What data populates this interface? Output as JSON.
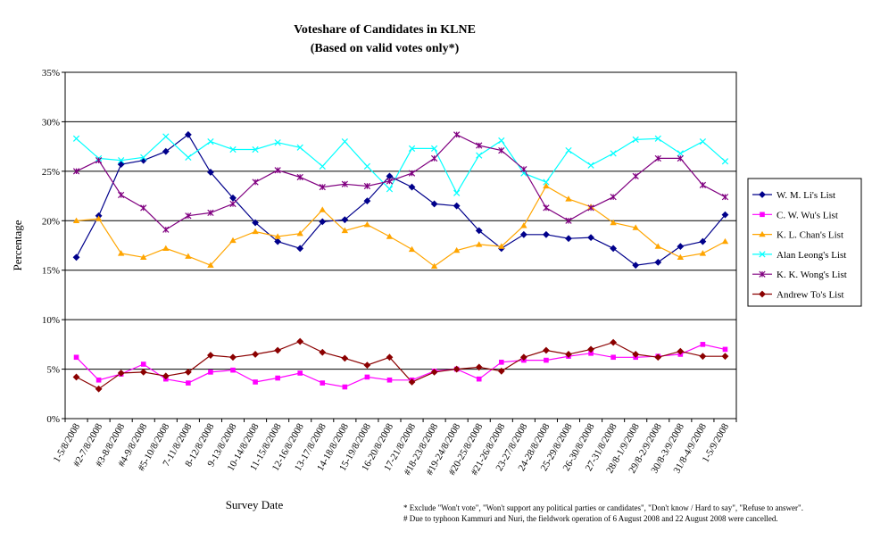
{
  "colors": {
    "background": "#ffffff",
    "grid": "#000000",
    "wm_li": "#00008b",
    "cw_wu": "#ff00ff",
    "kl_chan": "#ffa500",
    "alan_leong": "#00ffff",
    "kk_wong": "#800080",
    "andrew_to": "#8b0000"
  },
  "chart_data": {
    "type": "line",
    "title": "Voteshare of Candidates in KLNE",
    "subtitle": "(Based on valid votes only*)",
    "xlabel": "Survey Date",
    "ylabel": "Percentage",
    "ylim": [
      0,
      35
    ],
    "yticks": [
      "0%",
      "5%",
      "10%",
      "15%",
      "20%",
      "25%",
      "30%",
      "35%"
    ],
    "grid": true,
    "legend_position": "right",
    "categories": [
      "1-5/8/2008",
      "#2-7/8/2008",
      "#3-8/8/2008",
      "#4-9/8/2008",
      "#5-10/8/2008",
      "7-11/8/2008",
      "8-12/8/2008",
      "9-13/8/2008",
      "10-14/8/2008",
      "11-15/8/2008",
      "12-16/8/2008",
      "13-17/8/2008",
      "14-18/8/2008",
      "15-19/8/2008",
      "16-20/8/2008",
      "17-21/8/2008",
      "#18-23/8/2008",
      "#19-24/8/2008",
      "#20-25/8/2008",
      "#21-26/8/2008",
      "23-27/8/2008",
      "24-28/8/2008",
      "25-29/8/2008",
      "26-30/8/2008",
      "27-31/8/2008",
      "28/8-1/9/2008",
      "29/8-2/9/2008",
      "30/8-3/9/2008",
      "31/8-4/9/2008",
      "1-5/9/2008"
    ],
    "series": [
      {
        "name": "W. M. Li's List",
        "color_key": "wm_li",
        "marker": "diamond",
        "values": [
          16.3,
          20.5,
          25.7,
          26.1,
          27.0,
          28.7,
          24.9,
          22.3,
          19.8,
          17.9,
          17.2,
          19.9,
          20.1,
          22.0,
          24.5,
          23.4,
          21.7,
          21.5,
          19.0,
          17.2,
          18.6,
          18.6,
          18.2,
          18.3,
          17.2,
          15.5,
          15.8,
          17.4,
          17.9,
          20.6
        ]
      },
      {
        "name": "C. W. Wu's List",
        "color_key": "cw_wu",
        "marker": "square",
        "values": [
          6.2,
          3.9,
          4.5,
          5.5,
          4.0,
          3.6,
          4.7,
          4.9,
          3.7,
          4.1,
          4.6,
          3.6,
          3.2,
          4.2,
          3.9,
          3.9,
          4.8,
          5.0,
          4.0,
          5.7,
          5.9,
          5.9,
          6.3,
          6.6,
          6.2,
          6.2,
          6.3,
          6.5,
          7.5,
          7.0
        ]
      },
      {
        "name": "K. L. Chan's List",
        "color_key": "kl_chan",
        "marker": "triangle",
        "values": [
          20.0,
          20.2,
          16.7,
          16.3,
          17.2,
          16.4,
          15.5,
          18.0,
          18.9,
          18.4,
          18.7,
          21.1,
          19.0,
          19.6,
          18.4,
          17.1,
          15.4,
          17.0,
          17.6,
          17.4,
          19.5,
          23.5,
          22.2,
          21.4,
          19.8,
          19.3,
          17.4,
          16.3,
          16.7,
          17.9
        ]
      },
      {
        "name": "Alan Leong's List",
        "color_key": "alan_leong",
        "marker": "x",
        "values": [
          28.3,
          26.3,
          26.1,
          26.4,
          28.5,
          26.4,
          28.0,
          27.2,
          27.2,
          27.9,
          27.4,
          25.5,
          28.0,
          25.5,
          23.2,
          27.3,
          27.3,
          22.8,
          26.6,
          28.1,
          24.8,
          23.9,
          27.1,
          25.6,
          26.8,
          28.2,
          28.3,
          26.8,
          28.0,
          26.0
        ]
      },
      {
        "name": "K. K. Wong's List",
        "color_key": "kk_wong",
        "marker": "asterisk",
        "values": [
          25.0,
          26.1,
          22.6,
          21.3,
          19.1,
          20.5,
          20.8,
          21.7,
          23.9,
          25.1,
          24.4,
          23.4,
          23.7,
          23.5,
          24.0,
          24.8,
          26.3,
          28.7,
          27.6,
          27.1,
          25.2,
          21.3,
          20.0,
          21.3,
          22.4,
          24.5,
          26.3,
          26.3,
          23.6,
          22.4
        ]
      },
      {
        "name": "Andrew To's List",
        "color_key": "andrew_to",
        "marker": "diamond",
        "values": [
          4.2,
          3.0,
          4.6,
          4.7,
          4.3,
          4.7,
          6.4,
          6.2,
          6.5,
          6.9,
          7.8,
          6.7,
          6.1,
          5.4,
          6.2,
          3.7,
          4.7,
          5.0,
          5.2,
          4.8,
          6.2,
          6.9,
          6.5,
          7.0,
          7.7,
          6.5,
          6.2,
          6.8,
          6.3,
          6.3
        ]
      }
    ]
  },
  "footnotes": {
    "note1": "* Exclude \"Won't vote\", \"Won't support any political parties or candidates\", \"Don't know / Hard to say\", \"Refuse to answer\".",
    "note2": "# Due to typhoon Kammuri and Nuri, the fieldwork operation of 6 August 2008 and 22 August 2008 were cancelled."
  }
}
